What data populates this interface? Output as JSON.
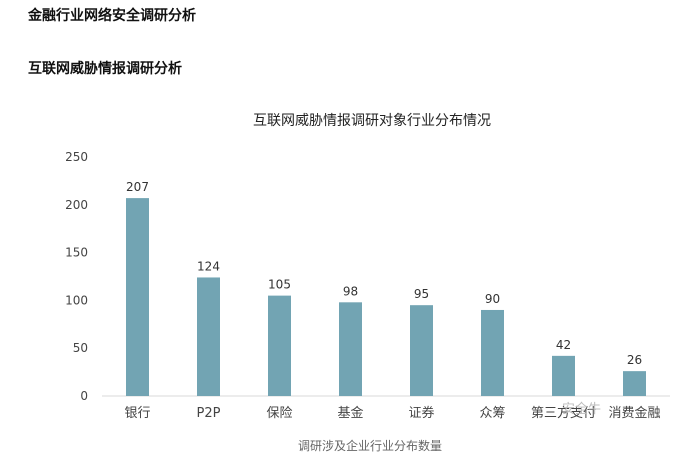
{
  "headings": {
    "primary": "金融行业网络安全调研分析",
    "secondary": "互联网威胁情报调研分析"
  },
  "watermark": {
    "text": "安全牛"
  },
  "chart_data": {
    "type": "bar",
    "title": "互联网威胁情报调研对象行业分布情况",
    "xlabel": "调研涉及企业行业分布数量",
    "ylabel": "",
    "categories": [
      "银行",
      "P2P",
      "保险",
      "基金",
      "证券",
      "众筹",
      "第三方支付",
      "消费金融"
    ],
    "values": [
      207,
      124,
      105,
      98,
      95,
      90,
      42,
      26
    ],
    "ylim": [
      0,
      250
    ],
    "yticks": [
      0,
      50,
      100,
      150,
      200,
      250
    ],
    "bar_color": "#72a4b3",
    "grid": false,
    "legend": "none"
  }
}
